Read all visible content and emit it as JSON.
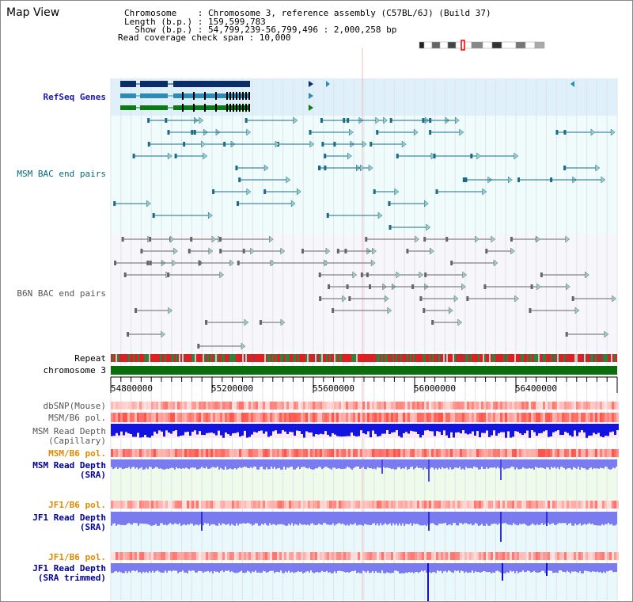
{
  "header": {
    "map_title": "Map View",
    "chromosome_line": "Chromosome    : Chromosome 3, reference assembly (C57BL/6J) (Build 37)",
    "length_line": "Length (b.p.) : 159,599,783",
    "show_line": "  Show (b.p.) : 54,799,239-56,799,496 : 2,000,258 bp",
    "coverage_line": "Read coverage check span : 10,000"
  },
  "tracks": {
    "refseq": "RefSeq Genes",
    "msm_bac": "MSM BAC end pairs",
    "b6n_bac": "B6N BAC end pairs",
    "repeat": "Repeat",
    "chromosome": "chromosome 3",
    "dbsnp": "dbSNP(Mouse)",
    "msm_b6_pol_1": "MSM/B6 pol.",
    "msm_depth_cap_1": "MSM Read Depth",
    "msm_depth_cap_2": "(Capillary)",
    "msm_b6_pol_2": "MSM/B6 pol.",
    "msm_depth_sra_1": "MSM Read Depth",
    "msm_depth_sra_2": "(SRA)",
    "jf1_b6_pol_1": "JF1/B6 pol.",
    "jf1_depth_sra_1": "JF1 Read Depth",
    "jf1_depth_sra_2": "(SRA)",
    "jf1_b6_pol_2": "JF1/B6 pol.",
    "jf1_depth_trim_1": "JF1 Read Depth",
    "jf1_depth_trim_2": "(SRA trimmed)"
  },
  "axis": {
    "ticks": [
      "54800000",
      "55200000",
      "55600000",
      "56000000",
      "56400000"
    ]
  },
  "colors": {
    "refseq_bg": "#dff0fb",
    "bac_bg": "#effcfb",
    "msm_bac": "#1a6c86",
    "b6n_bac": "#666666",
    "chromosome": "#0a6e0a",
    "capillary_depth": "#1414e0",
    "sra_depth": "#7b7bf0",
    "sra_bg": "#eefbea",
    "pol_red": "#f03030"
  }
}
